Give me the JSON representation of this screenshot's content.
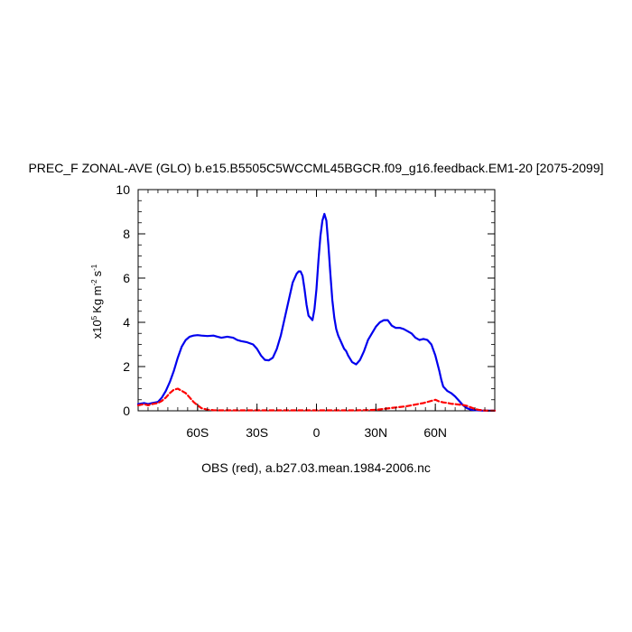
{
  "chart_data": {
    "type": "line",
    "title": "PREC_F ZONAL-AVE (GLO) b.e15.B5505C5WCCML45BGCR.f09_g16.feedback.EM1-20 [2075-2099]",
    "caption": "OBS (red), a.b27.03.mean.1984-2006.nc",
    "ylabel": {
      "prefix": "x10",
      "exponent": "5",
      "units_text": "Kg m",
      "units_exp": "-2",
      "units_tail": "s",
      "units_tail_exp": "-1"
    },
    "xlim": [
      -90,
      90
    ],
    "ylim": [
      0,
      10
    ],
    "x_ticks": [
      {
        "value": -60,
        "label": "60S"
      },
      {
        "value": -30,
        "label": "30S"
      },
      {
        "value": 0,
        "label": "0"
      },
      {
        "value": 30,
        "label": "30N"
      },
      {
        "value": 60,
        "label": "60N"
      }
    ],
    "y_ticks": [
      0,
      2,
      4,
      6,
      8,
      10
    ],
    "series": [
      {
        "color": "#0000ee",
        "style": "solid",
        "x": [
          -90,
          -87,
          -85,
          -83,
          -80,
          -78,
          -76,
          -74,
          -72,
          -70,
          -68,
          -66,
          -64,
          -62,
          -60,
          -58,
          -55,
          -52,
          -50,
          -48,
          -45,
          -42,
          -40,
          -38,
          -35,
          -32,
          -30,
          -28,
          -26,
          -24,
          -22,
          -20,
          -18,
          -16,
          -14,
          -12,
          -10,
          -9,
          -8,
          -7,
          -6,
          -5,
          -4,
          -3,
          -2,
          -1,
          0,
          1,
          2,
          3,
          4,
          5,
          6,
          7,
          8,
          9,
          10,
          11,
          12,
          13,
          14,
          15,
          16,
          18,
          20,
          22,
          24,
          26,
          28,
          30,
          32,
          34,
          36,
          38,
          40,
          42,
          44,
          46,
          48,
          50,
          52,
          54,
          56,
          58,
          60,
          62,
          63,
          64,
          66,
          68,
          70,
          72,
          74,
          76,
          78,
          80,
          82,
          84,
          86,
          88,
          90
        ],
        "y": [
          0.3,
          0.35,
          0.3,
          0.35,
          0.4,
          0.6,
          0.9,
          1.3,
          1.8,
          2.4,
          2.9,
          3.2,
          3.35,
          3.4,
          3.42,
          3.4,
          3.38,
          3.4,
          3.35,
          3.3,
          3.35,
          3.3,
          3.2,
          3.15,
          3.1,
          3.0,
          2.8,
          2.5,
          2.3,
          2.28,
          2.4,
          2.8,
          3.4,
          4.2,
          5.0,
          5.8,
          6.2,
          6.3,
          6.3,
          6.1,
          5.5,
          4.8,
          4.3,
          4.2,
          4.1,
          4.6,
          5.5,
          6.8,
          7.9,
          8.6,
          8.9,
          8.6,
          7.5,
          6.2,
          5.0,
          4.2,
          3.7,
          3.4,
          3.2,
          3.0,
          2.8,
          2.7,
          2.5,
          2.2,
          2.1,
          2.3,
          2.7,
          3.2,
          3.5,
          3.8,
          4.0,
          4.1,
          4.1,
          3.85,
          3.75,
          3.75,
          3.7,
          3.6,
          3.5,
          3.3,
          3.2,
          3.25,
          3.2,
          3.0,
          2.5,
          1.8,
          1.4,
          1.1,
          0.9,
          0.8,
          0.65,
          0.45,
          0.25,
          0.12,
          0.05,
          0.03,
          0.02,
          0.01,
          0.01,
          0.01,
          0.01
        ]
      },
      {
        "color": "#ff0000",
        "style": "dashed",
        "x": [
          -90,
          -87,
          -85,
          -83,
          -80,
          -78,
          -76,
          -74,
          -72,
          -70,
          -68,
          -66,
          -64,
          -62,
          -60,
          -58,
          -55,
          -52,
          -50,
          -48,
          -45,
          -40,
          -30,
          -20,
          -10,
          0,
          10,
          20,
          30,
          35,
          40,
          45,
          50,
          52,
          54,
          56,
          58,
          60,
          62,
          64,
          66,
          68,
          70,
          72,
          74,
          76,
          78,
          80,
          82,
          84,
          86,
          88,
          90
        ],
        "y": [
          0.25,
          0.3,
          0.25,
          0.3,
          0.35,
          0.45,
          0.6,
          0.8,
          0.95,
          1.0,
          0.9,
          0.8,
          0.6,
          0.4,
          0.25,
          0.12,
          0.05,
          0.03,
          0.02,
          0.02,
          0.02,
          0.02,
          0.02,
          0.02,
          0.02,
          0.02,
          0.02,
          0.02,
          0.04,
          0.1,
          0.15,
          0.2,
          0.28,
          0.32,
          0.35,
          0.4,
          0.45,
          0.5,
          0.42,
          0.38,
          0.36,
          0.32,
          0.3,
          0.28,
          0.26,
          0.22,
          0.15,
          0.08,
          0.04,
          0.02,
          0.01,
          0.01,
          0.01
        ]
      }
    ],
    "grid": false
  }
}
